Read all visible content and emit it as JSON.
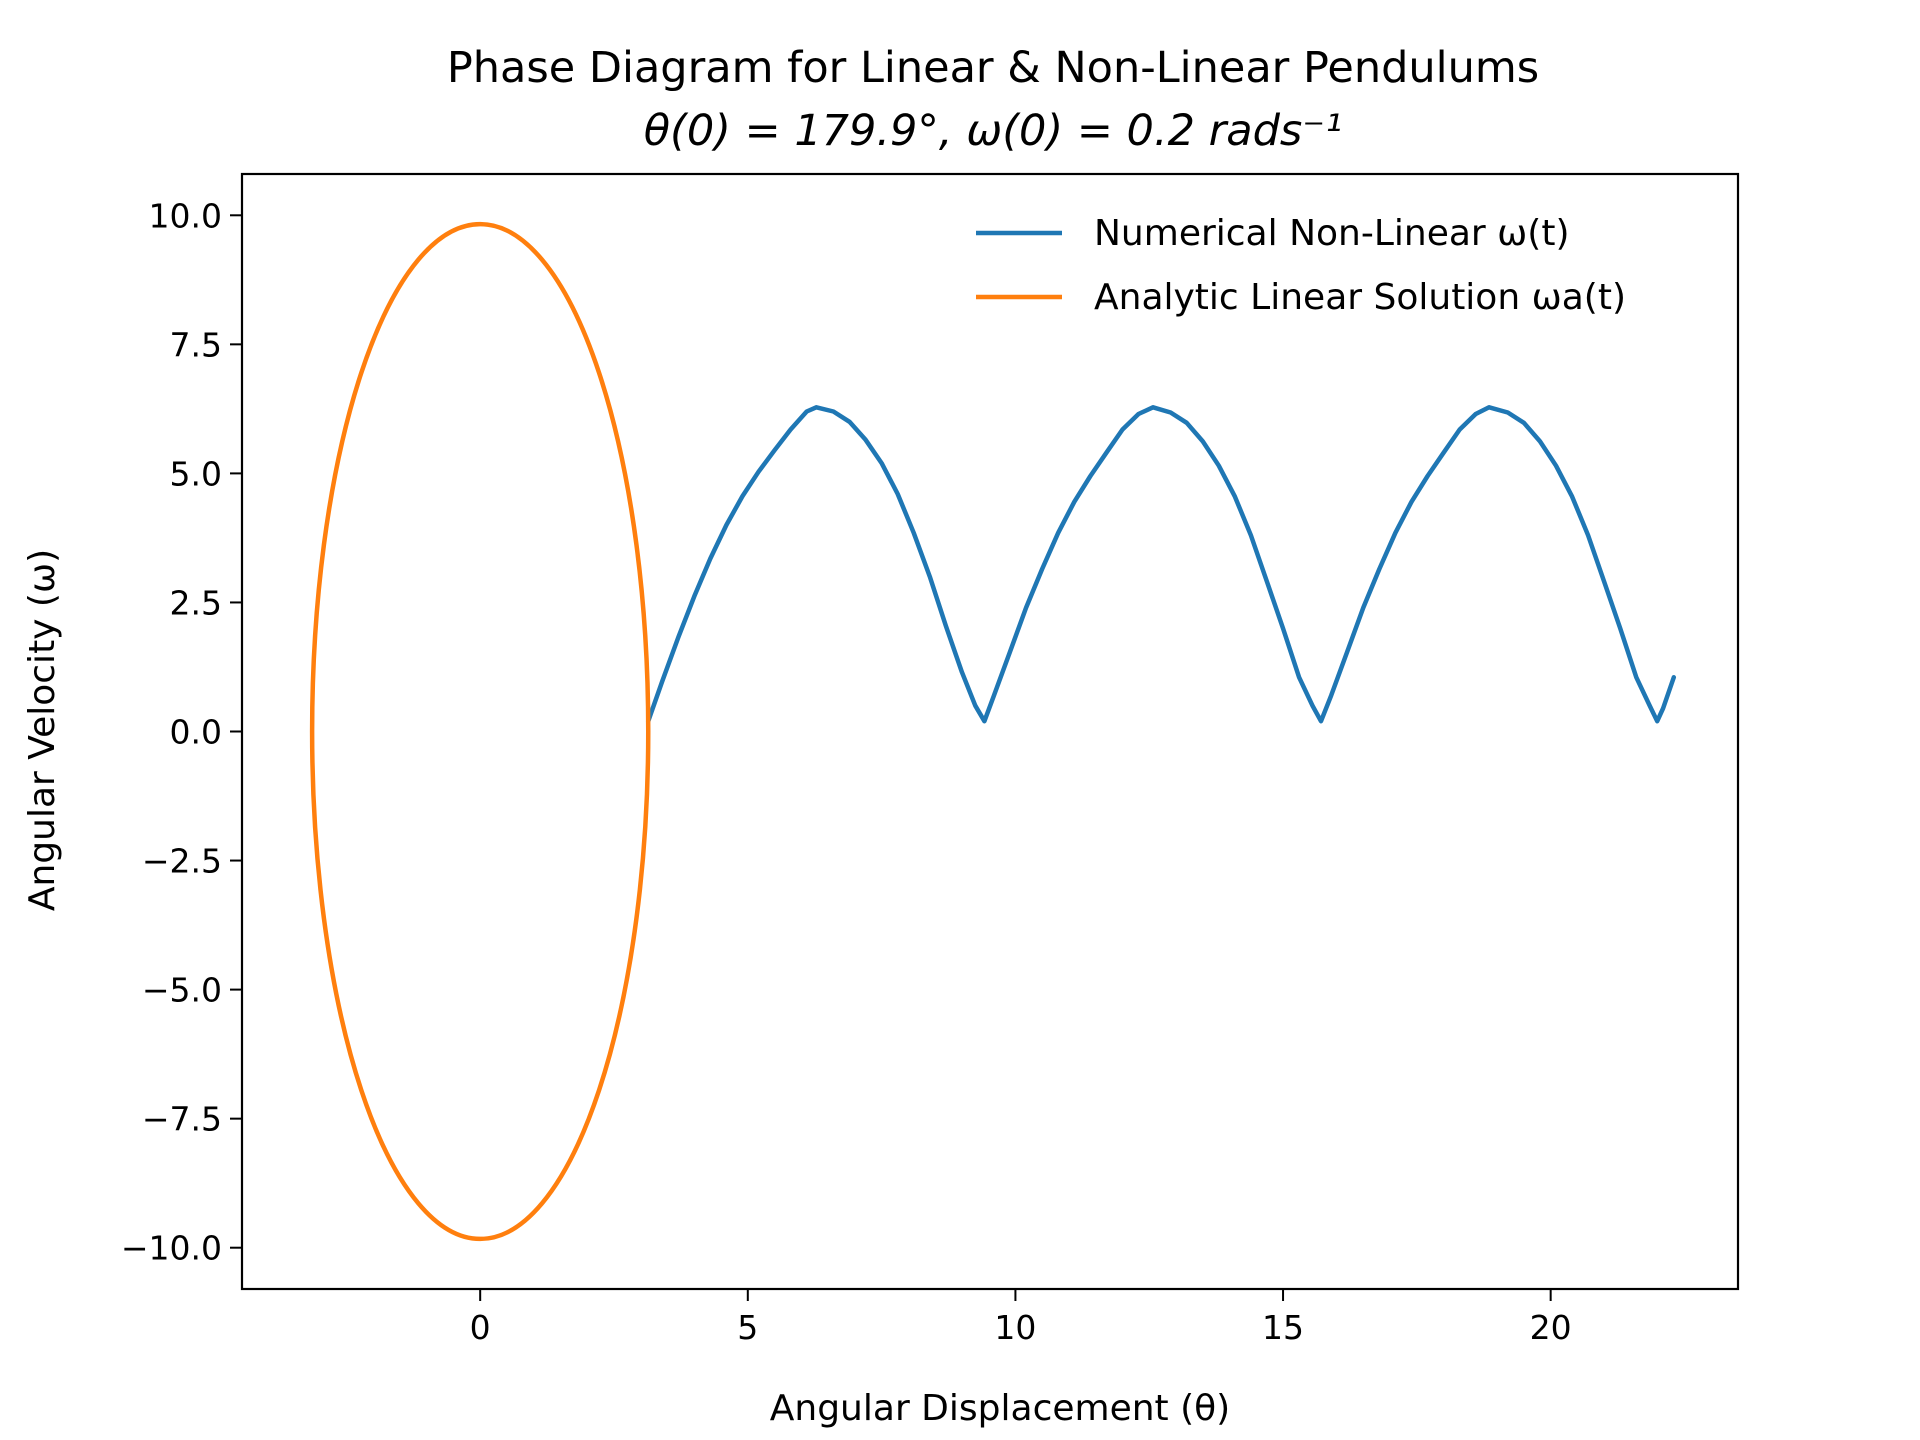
{
  "chart_data": {
    "type": "line",
    "title": "Phase Diagram for Linear & Non-Linear Pendulums",
    "subtitle": "θ(0) = 179.9°, ω(0) = 0.2 rads⁻¹",
    "xlabel": "Angular Displacement (θ)",
    "ylabel": "Angular Velocity (ω)",
    "xlim": [
      -4.45,
      23.5
    ],
    "ylim": [
      -10.8,
      10.8
    ],
    "xticks": [
      0,
      5,
      10,
      15,
      20
    ],
    "xtick_labels": [
      "0",
      "5",
      "10",
      "15",
      "20"
    ],
    "yticks": [
      10.0,
      7.5,
      5.0,
      2.5,
      0.0,
      -2.5,
      -5.0,
      -7.5,
      -10.0
    ],
    "ytick_labels": [
      "10.0",
      "7.5",
      "5.0",
      "2.5",
      "0.0",
      "−2.5",
      "−5.0",
      "−7.5",
      "−10.0"
    ],
    "grid": false,
    "legend_position": "top-right",
    "series": [
      {
        "name": "Numerical Non-Linear  ω(t)",
        "color": "#1f77b4",
        "points": [
          [
            3.14,
            0.2
          ],
          [
            3.4,
            0.97
          ],
          [
            3.7,
            1.82
          ],
          [
            4.0,
            2.62
          ],
          [
            4.3,
            3.35
          ],
          [
            4.6,
            4.0
          ],
          [
            4.9,
            4.56
          ],
          [
            5.2,
            5.03
          ],
          [
            5.5,
            5.45
          ],
          [
            5.8,
            5.85
          ],
          [
            6.1,
            6.2
          ],
          [
            6.28,
            6.28
          ],
          [
            6.6,
            6.2
          ],
          [
            6.9,
            6.0
          ],
          [
            7.2,
            5.65
          ],
          [
            7.5,
            5.2
          ],
          [
            7.8,
            4.6
          ],
          [
            8.1,
            3.85
          ],
          [
            8.4,
            3.0
          ],
          [
            8.7,
            2.05
          ],
          [
            9.0,
            1.15
          ],
          [
            9.25,
            0.5
          ],
          [
            9.42,
            0.2
          ],
          [
            9.6,
            0.7
          ],
          [
            9.9,
            1.55
          ],
          [
            10.2,
            2.4
          ],
          [
            10.5,
            3.15
          ],
          [
            10.8,
            3.85
          ],
          [
            11.1,
            4.45
          ],
          [
            11.4,
            4.95
          ],
          [
            11.7,
            5.4
          ],
          [
            12.0,
            5.85
          ],
          [
            12.3,
            6.15
          ],
          [
            12.57,
            6.28
          ],
          [
            12.9,
            6.18
          ],
          [
            13.2,
            5.98
          ],
          [
            13.5,
            5.62
          ],
          [
            13.8,
            5.15
          ],
          [
            14.1,
            4.55
          ],
          [
            14.4,
            3.8
          ],
          [
            14.7,
            2.9
          ],
          [
            15.0,
            2.0
          ],
          [
            15.3,
            1.05
          ],
          [
            15.55,
            0.5
          ],
          [
            15.71,
            0.2
          ],
          [
            15.9,
            0.7
          ],
          [
            16.2,
            1.55
          ],
          [
            16.5,
            2.4
          ],
          [
            16.8,
            3.15
          ],
          [
            17.1,
            3.85
          ],
          [
            17.4,
            4.45
          ],
          [
            17.7,
            4.95
          ],
          [
            18.0,
            5.4
          ],
          [
            18.3,
            5.85
          ],
          [
            18.6,
            6.15
          ],
          [
            18.85,
            6.28
          ],
          [
            19.2,
            6.18
          ],
          [
            19.5,
            5.98
          ],
          [
            19.8,
            5.62
          ],
          [
            20.1,
            5.15
          ],
          [
            20.4,
            4.55
          ],
          [
            20.7,
            3.8
          ],
          [
            21.0,
            2.9
          ],
          [
            21.3,
            2.0
          ],
          [
            21.6,
            1.05
          ],
          [
            21.85,
            0.5
          ],
          [
            21.99,
            0.2
          ],
          [
            22.1,
            0.45
          ],
          [
            22.3,
            1.05
          ]
        ]
      },
      {
        "name": "Analytic Linear Solution ωa(t)",
        "color": "#ff7f0e",
        "type": "ellipse",
        "center": [
          0,
          0
        ],
        "x_amplitude": 3.14,
        "y_amplitude": 9.83
      }
    ]
  }
}
